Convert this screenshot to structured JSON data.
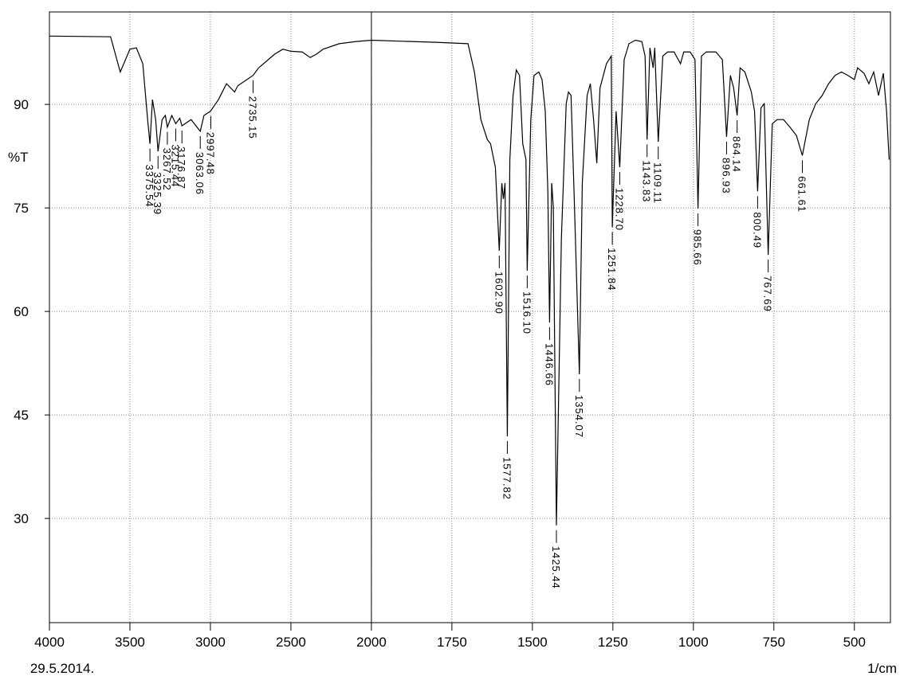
{
  "chart_data": {
    "type": "line",
    "y_label": "%T",
    "x_label": "1/cm",
    "date": "29.5.2014.",
    "xlim": [
      4000,
      388
    ],
    "x_break": 2000,
    "xticks": [
      4000,
      3500,
      3000,
      2500,
      2000,
      1750,
      1500,
      1250,
      1000,
      750,
      500
    ],
    "ylim": [
      14.9,
      103.4
    ],
    "yticks": [
      30,
      45,
      60,
      75,
      90
    ],
    "grid": true,
    "series": [
      {
        "color": "#000000",
        "x": [
          4000,
          3620,
          3560,
          3500,
          3460,
          3420,
          3390,
          3375.54,
          3360,
          3340,
          3325.39,
          3300,
          3280,
          3267.52,
          3240,
          3215.44,
          3190,
          3176.87,
          3120,
          3063.06,
          3040,
          3000,
          2950,
          2900,
          2850,
          2830,
          2735.15,
          2700,
          2600,
          2550,
          2500,
          2430,
          2380,
          2340,
          2300,
          2200,
          2100,
          2000,
          1800,
          1700,
          1680,
          1660,
          1640,
          1630,
          1615,
          1602.9,
          1595,
          1590,
          1585,
          1577.82,
          1570,
          1560,
          1550,
          1540,
          1530,
          1520,
          1516.1,
          1505,
          1495,
          1480,
          1470,
          1460,
          1452,
          1446.66,
          1440,
          1435,
          1425.44,
          1410,
          1395,
          1388,
          1380,
          1370,
          1354.07,
          1345,
          1330,
          1320,
          1310,
          1300,
          1290,
          1270,
          1255,
          1251.84,
          1240,
          1228.7,
          1215,
          1200,
          1180,
          1160,
          1150,
          1143.83,
          1135,
          1125,
          1120,
          1109.11,
          1095,
          1080,
          1060,
          1040,
          1030,
          1010,
          995,
          985.66,
          975,
          960,
          930,
          910,
          896.93,
          885,
          875,
          864.14,
          855,
          840,
          820,
          810,
          800.49,
          790,
          780,
          767.69,
          755,
          740,
          720,
          700,
          680,
          661.61,
          640,
          620,
          600,
          580,
          560,
          540,
          520,
          500,
          490,
          470,
          455,
          440,
          425,
          410,
          400,
          392
        ],
        "values": [
          99.9,
          99.8,
          94.7,
          98.0,
          98.2,
          95.9,
          87.8,
          84.3,
          90.7,
          87.8,
          83.2,
          87.8,
          88.4,
          86.7,
          88.4,
          87.2,
          88.0,
          86.9,
          87.8,
          86.1,
          88.4,
          89.0,
          90.7,
          93.0,
          91.8,
          92.7,
          94.2,
          95.3,
          97.3,
          98.0,
          97.7,
          97.6,
          96.8,
          97.3,
          98.0,
          98.8,
          99.1,
          99.3,
          99.0,
          98.8,
          94.7,
          87.8,
          84.9,
          84.3,
          80.9,
          68.8,
          78.6,
          76.3,
          78.6,
          41.9,
          82.0,
          91.3,
          95.0,
          94.2,
          84.3,
          82.0,
          65.9,
          87.8,
          94.2,
          94.7,
          93.6,
          89.0,
          77.4,
          58.4,
          78.6,
          75.1,
          29.0,
          70.5,
          90.1,
          91.8,
          91.3,
          76.3,
          50.9,
          78.6,
          91.3,
          93.0,
          87.8,
          81.5,
          92.4,
          95.9,
          97.0,
          72.2,
          89.0,
          80.9,
          96.5,
          98.8,
          99.3,
          99.1,
          97.0,
          84.9,
          98.2,
          95.3,
          98.2,
          84.6,
          97.0,
          97.6,
          97.6,
          95.9,
          97.6,
          97.6,
          96.5,
          74.9,
          97.0,
          97.6,
          97.6,
          96.5,
          85.3,
          94.2,
          92.4,
          88.4,
          95.3,
          94.7,
          91.8,
          89.0,
          77.4,
          89.5,
          90.1,
          68.2,
          87.2,
          87.8,
          87.8,
          86.7,
          85.5,
          82.6,
          87.8,
          90.1,
          91.3,
          93.0,
          94.2,
          94.7,
          94.2,
          93.6,
          95.3,
          94.5,
          93.0,
          94.7,
          91.3,
          94.5,
          89.0,
          82.0
        ]
      }
    ],
    "peaks": [
      {
        "x": 3375.54,
        "y": 84.3,
        "label": "3375.54"
      },
      {
        "x": 3325.39,
        "y": 83.2,
        "label": "3325.39"
      },
      {
        "x": 3267.52,
        "y": 86.7,
        "label": "3267.52"
      },
      {
        "x": 3215.44,
        "y": 87.2,
        "label": "3215.44"
      },
      {
        "x": 3176.87,
        "y": 86.9,
        "label": "3176.87"
      },
      {
        "x": 3063.06,
        "y": 86.1,
        "label": "3063.06"
      },
      {
        "x": 2997.48,
        "y": 89.0,
        "label": "2997.48"
      },
      {
        "x": 2735.15,
        "y": 94.2,
        "label": "2735.15"
      },
      {
        "x": 1602.9,
        "y": 68.8,
        "label": "1602.90"
      },
      {
        "x": 1577.82,
        "y": 41.9,
        "label": "1577.82"
      },
      {
        "x": 1516.1,
        "y": 65.9,
        "label": "1516.10"
      },
      {
        "x": 1446.66,
        "y": 58.4,
        "label": "1446.66"
      },
      {
        "x": 1425.44,
        "y": 29.0,
        "label": "1425.44"
      },
      {
        "x": 1354.07,
        "y": 50.9,
        "label": "1354.07"
      },
      {
        "x": 1251.84,
        "y": 72.2,
        "label": "1251.84"
      },
      {
        "x": 1228.7,
        "y": 80.9,
        "label": "1228.70"
      },
      {
        "x": 1143.83,
        "y": 84.9,
        "label": "1143.83"
      },
      {
        "x": 1109.11,
        "y": 84.6,
        "label": "1109.11"
      },
      {
        "x": 985.66,
        "y": 74.9,
        "label": "985.66"
      },
      {
        "x": 896.93,
        "y": 85.3,
        "label": "896.93"
      },
      {
        "x": 864.14,
        "y": 88.4,
        "label": "864.14"
      },
      {
        "x": 800.49,
        "y": 77.4,
        "label": "800.49"
      },
      {
        "x": 767.69,
        "y": 68.2,
        "label": "767.69"
      },
      {
        "x": 661.61,
        "y": 82.6,
        "label": "661.61"
      }
    ]
  }
}
